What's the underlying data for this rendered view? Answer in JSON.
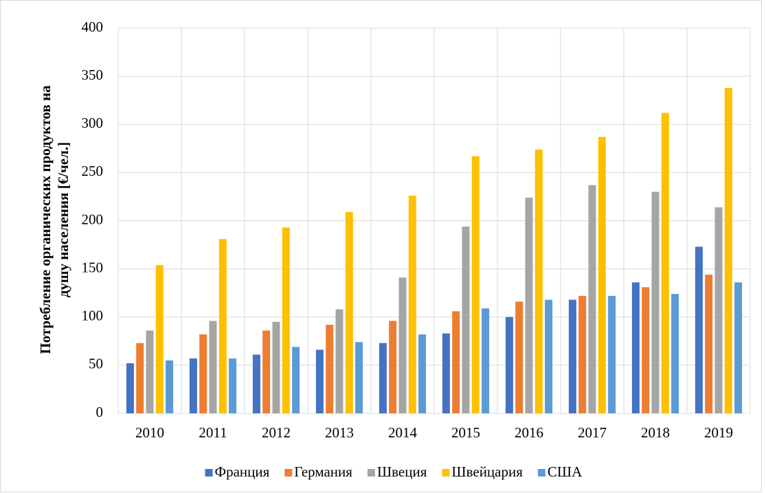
{
  "chart_data": {
    "type": "bar",
    "ylabel": [
      "Потребление органических продуктов на",
      "душу населения [€/чел.]"
    ],
    "categories": [
      "2010",
      "2011",
      "2012",
      "2013",
      "2014",
      "2015",
      "2016",
      "2017",
      "2018",
      "2019"
    ],
    "series": [
      {
        "name": "Франция",
        "color": "#4472c4",
        "values": [
          52,
          57,
          61,
          66,
          73,
          83,
          100,
          118,
          136,
          173
        ]
      },
      {
        "name": "Германия",
        "color": "#ed7d31",
        "values": [
          73,
          82,
          86,
          92,
          96,
          106,
          116,
          122,
          131,
          144
        ]
      },
      {
        "name": "Швеция",
        "color": "#a5a5a5",
        "values": [
          86,
          96,
          95,
          108,
          141,
          194,
          224,
          237,
          230,
          214
        ]
      },
      {
        "name": "Швейцария",
        "color": "#ffc000",
        "values": [
          154,
          181,
          193,
          209,
          226,
          267,
          274,
          287,
          312,
          338
        ]
      },
      {
        "name": "США",
        "color": "#5b9bd5",
        "values": [
          55,
          57,
          69,
          74,
          82,
          109,
          118,
          122,
          124,
          136
        ]
      }
    ],
    "ylim": [
      0,
      400
    ],
    "yticks": [
      0,
      50,
      100,
      150,
      200,
      250,
      300,
      350,
      400
    ],
    "grid": true,
    "legend": "bottom"
  }
}
